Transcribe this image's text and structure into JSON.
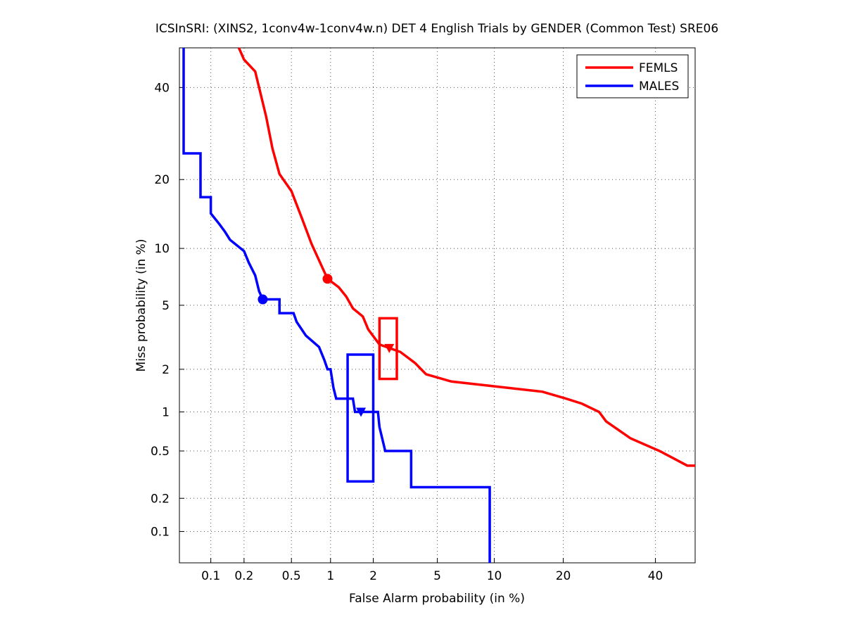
{
  "chart_data": {
    "type": "det",
    "title": "ICSInSRI: (XINS2, 1conv4w-1conv4w.n) DET 4 English Trials by GENDER (Common Test) SRE06",
    "x_label": "False Alarm probability (in %)",
    "y_label": "Miss probability (in %)",
    "scale": "probit",
    "grid": true,
    "legend": "upper right",
    "xlim": [
      0.05,
      50
    ],
    "ylim": [
      0.05,
      50
    ],
    "xticks": [
      0.1,
      0.2,
      0.5,
      1,
      2,
      5,
      10,
      20,
      40
    ],
    "yticks": [
      0.1,
      0.2,
      0.5,
      1,
      2,
      5,
      10,
      20,
      40
    ],
    "series": [
      {
        "name": "FEMLS",
        "color": "#ff0000",
        "x": [
          0.18,
          0.2,
          0.25,
          0.27,
          0.31,
          0.35,
          0.4,
          0.5,
          0.6,
          0.72,
          0.95,
          1.15,
          1.3,
          1.45,
          1.7,
          1.85,
          2.2,
          3,
          3.7,
          4.3,
          6,
          16.5,
          20.5,
          23.5,
          27,
          28.5,
          34,
          41,
          48,
          50
        ],
        "y": [
          50,
          47,
          44,
          40,
          33,
          26,
          21,
          18,
          14,
          10.5,
          7,
          6.3,
          5.6,
          4.8,
          4.3,
          3.6,
          2.9,
          2.6,
          2.2,
          1.85,
          1.65,
          1.4,
          1.25,
          1.15,
          1,
          0.85,
          0.63,
          0.5,
          0.38,
          0.38
        ],
        "min_dcf_point": {
          "x": 0.95,
          "y": 7
        },
        "act_dcf_point": {
          "x": 2.55,
          "y": 2.75
        },
        "confidence_box": {
          "x": [
            2.2,
            2.85
          ],
          "y": [
            1.72,
            4.2
          ]
        }
      },
      {
        "name": "MALES",
        "color": "#0000ff",
        "x": [
          0.055,
          0.055,
          0.08,
          0.08,
          0.1,
          0.1,
          0.12,
          0.135,
          0.15,
          0.2,
          0.22,
          0.25,
          0.27,
          0.29,
          0.4,
          0.4,
          0.52,
          0.55,
          0.65,
          0.82,
          0.9,
          0.95,
          1,
          1.05,
          1.1,
          1.45,
          1.5,
          2.15,
          2.2,
          2.4,
          3.5,
          3.5,
          9.5,
          9.5
        ],
        "y": [
          50,
          25,
          25,
          17,
          17,
          14.5,
          13,
          12,
          11,
          9.7,
          8.5,
          7.3,
          6,
          5.4,
          5.4,
          4.5,
          4.5,
          4,
          3.3,
          2.8,
          2.3,
          2,
          2,
          1.5,
          1.25,
          1.25,
          1,
          1,
          0.77,
          0.5,
          0.5,
          0.25,
          0.25,
          0.05
        ],
        "min_dcf_point": {
          "x": 0.29,
          "y": 5.4
        },
        "act_dcf_point": {
          "x": 1.65,
          "y": 1
        },
        "confidence_box": {
          "x": [
            1.33,
            2.0
          ],
          "y": [
            0.28,
            2.5
          ]
        }
      }
    ]
  }
}
